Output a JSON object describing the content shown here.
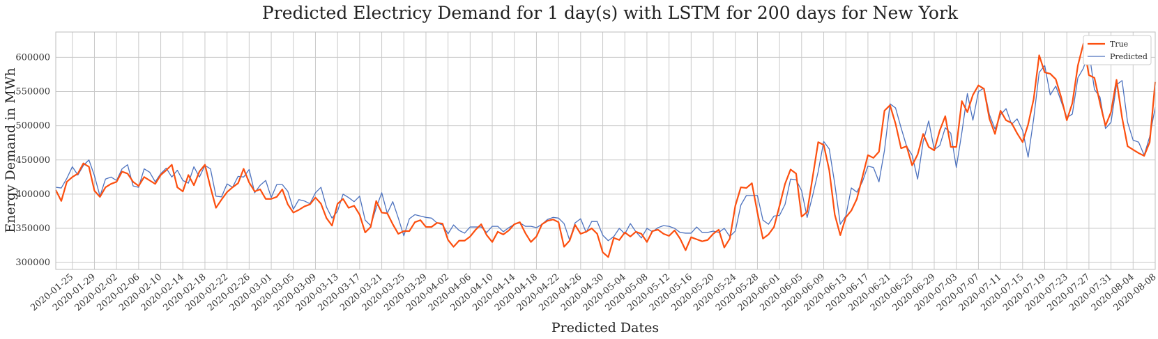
{
  "chart_data": {
    "type": "line",
    "title": "Predicted Electricy Demand for 1 day(s) with LSTM for 200 days for New York",
    "xlabel": "Predicted Dates",
    "ylabel": "Energy Demand in MWh",
    "start_date": "2020-01-22",
    "end_date": "2020-08-08",
    "ylim": [
      290000,
      637000
    ],
    "y_ticks": [
      300000,
      350000,
      400000,
      450000,
      500000,
      550000,
      600000
    ],
    "y_tick_labels": [
      "300000",
      "350000",
      "400000",
      "450000",
      "500000",
      "550000",
      "600000"
    ],
    "x_tick_labels": [
      "2020-01-25",
      "2020-01-29",
      "2020-02-02",
      "2020-02-06",
      "2020-02-10",
      "2020-02-14",
      "2020-02-18",
      "2020-02-22",
      "2020-02-26",
      "2020-03-01",
      "2020-03-05",
      "2020-03-09",
      "2020-03-13",
      "2020-03-17",
      "2020-03-21",
      "2020-03-25",
      "2020-03-29",
      "2020-04-02",
      "2020-04-06",
      "2020-04-10",
      "2020-04-14",
      "2020-04-18",
      "2020-04-22",
      "2020-04-26",
      "2020-04-30",
      "2020-05-04",
      "2020-05-08",
      "2020-05-12",
      "2020-05-16",
      "2020-05-20",
      "2020-05-24",
      "2020-05-28",
      "2020-06-01",
      "2020-06-05",
      "2020-06-09",
      "2020-06-13",
      "2020-06-17",
      "2020-06-21",
      "2020-06-25",
      "2020-06-29",
      "2020-07-03",
      "2020-07-07",
      "2020-07-11",
      "2020-07-15",
      "2020-07-19",
      "2020-07-23",
      "2020-07-27",
      "2020-07-31",
      "2020-08-04",
      "2020-08-08"
    ],
    "grid": true,
    "legend_position": "top-right",
    "series": [
      {
        "name": "True",
        "color": "#fc4f0f",
        "values": [
          406000,
          390000,
          418000,
          425000,
          430000,
          445000,
          440000,
          405000,
          396000,
          410000,
          415000,
          418000,
          433000,
          430000,
          418000,
          412000,
          425000,
          420000,
          415000,
          428000,
          435000,
          443000,
          410000,
          404000,
          428000,
          413000,
          433000,
          443000,
          410000,
          380000,
          392000,
          403000,
          410000,
          416000,
          437000,
          417000,
          404000,
          407000,
          393000,
          393000,
          396000,
          407000,
          385000,
          373000,
          377000,
          382000,
          385000,
          395000,
          386000,
          365000,
          354000,
          386000,
          393000,
          380000,
          383000,
          370000,
          344000,
          352000,
          390000,
          373000,
          372000,
          356000,
          342000,
          346000,
          346000,
          359000,
          362000,
          352000,
          352000,
          358000,
          357000,
          333000,
          323000,
          332000,
          332000,
          338000,
          348000,
          356000,
          340000,
          330000,
          345000,
          341000,
          347000,
          356000,
          359000,
          343000,
          330000,
          338000,
          356000,
          361000,
          363000,
          359000,
          323000,
          332000,
          355000,
          342000,
          345000,
          350000,
          342000,
          315000,
          308000,
          336000,
          333000,
          344000,
          338000,
          345000,
          342000,
          330000,
          346000,
          348000,
          342000,
          339000,
          347000,
          335000,
          318000,
          337000,
          334000,
          331000,
          333000,
          342000,
          348000,
          322000,
          335000,
          383000,
          410000,
          409000,
          416000,
          373000,
          335000,
          341000,
          352000,
          383000,
          415000,
          436000,
          430000,
          367000,
          374000,
          425000,
          476000,
          472000,
          435000,
          370000,
          340000,
          366000,
          376000,
          393000,
          425000,
          457000,
          453000,
          462000,
          522000,
          530000,
          503000,
          467000,
          470000,
          442000,
          458000,
          488000,
          469000,
          464000,
          493000,
          514000,
          469000,
          469000,
          536000,
          520000,
          545000,
          559000,
          554000,
          510000,
          488000,
          522000,
          508000,
          504000,
          489000,
          476000,
          502000,
          539000,
          603000,
          578000,
          576000,
          568000,
          541000,
          508000,
          533000,
          588000,
          620000,
          574000,
          570000,
          533000,
          500000,
          520000,
          567000,
          512000,
          470000,
          465000,
          460000,
          456000,
          476000,
          564000
        ]
      },
      {
        "name": "Predicted",
        "color": "#4d72be",
        "values": [
          410000,
          409000,
          423000,
          440000,
          428000,
          442000,
          450000,
          427000,
          397000,
          422000,
          425000,
          420000,
          437000,
          443000,
          412000,
          410000,
          437000,
          432000,
          418000,
          430000,
          438000,
          425000,
          435000,
          420000,
          416000,
          440000,
          425000,
          442000,
          437000,
          397000,
          396000,
          415000,
          410000,
          426000,
          425000,
          436000,
          402000,
          413000,
          420000,
          395000,
          414000,
          414000,
          404000,
          378000,
          392000,
          390000,
          386000,
          402000,
          410000,
          381000,
          365000,
          375000,
          400000,
          395000,
          389000,
          397000,
          362000,
          354000,
          380000,
          402000,
          372000,
          389000,
          365000,
          339000,
          364000,
          370000,
          368000,
          366000,
          365000,
          358000,
          355000,
          342000,
          355000,
          347000,
          343000,
          352000,
          352000,
          352000,
          344000,
          353000,
          353000,
          345000,
          351000,
          356000,
          358000,
          353000,
          353000,
          351000,
          356000,
          363000,
          366000,
          365000,
          357000,
          333000,
          358000,
          364000,
          344000,
          360000,
          360000,
          340000,
          332000,
          338000,
          350000,
          342000,
          357000,
          345000,
          336000,
          350000,
          345000,
          351000,
          354000,
          353000,
          350000,
          344000,
          343000,
          343000,
          352000,
          344000,
          344000,
          346000,
          344000,
          350000,
          338000,
          346000,
          384000,
          398000,
          398000,
          398000,
          362000,
          356000,
          368000,
          369000,
          385000,
          422000,
          421000,
          405000,
          366000,
          398000,
          433000,
          477000,
          466000,
          415000,
          356000,
          368000,
          409000,
          403000,
          418000,
          441000,
          439000,
          418000,
          464000,
          532000,
          526000,
          497000,
          470000,
          457000,
          422000,
          477000,
          507000,
          465000,
          471000,
          497000,
          489000,
          439000,
          490000,
          547000,
          508000,
          550000,
          555000,
          516000,
          495000,
          516000,
          525000,
          502000,
          510000,
          493000,
          454000,
          510000,
          578000,
          588000,
          545000,
          558000,
          535000,
          512000,
          517000,
          570000,
          584000,
          609000,
          553000,
          542000,
          496000,
          505000,
          560000,
          566000,
          505000,
          479000,
          476000,
          457000,
          484000,
          527000
        ]
      }
    ]
  }
}
